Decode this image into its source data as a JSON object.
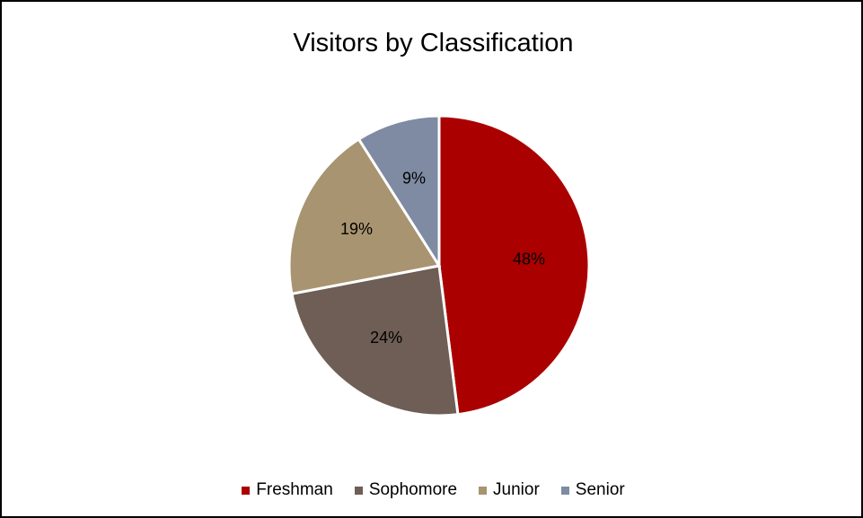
{
  "chart_data": {
    "type": "pie",
    "title": "Visitors by Classification",
    "categories": [
      "Freshman",
      "Sophomore",
      "Junior",
      "Senior"
    ],
    "values": [
      48,
      24,
      19,
      9
    ],
    "labels": [
      "48%",
      "24%",
      "19%",
      "9%"
    ],
    "colors": [
      "#AA0000",
      "#6E5E55",
      "#A89470",
      "#7F8BA3"
    ],
    "legend_position": "bottom",
    "start_angle": "12 o'clock",
    "direction": "clockwise"
  }
}
